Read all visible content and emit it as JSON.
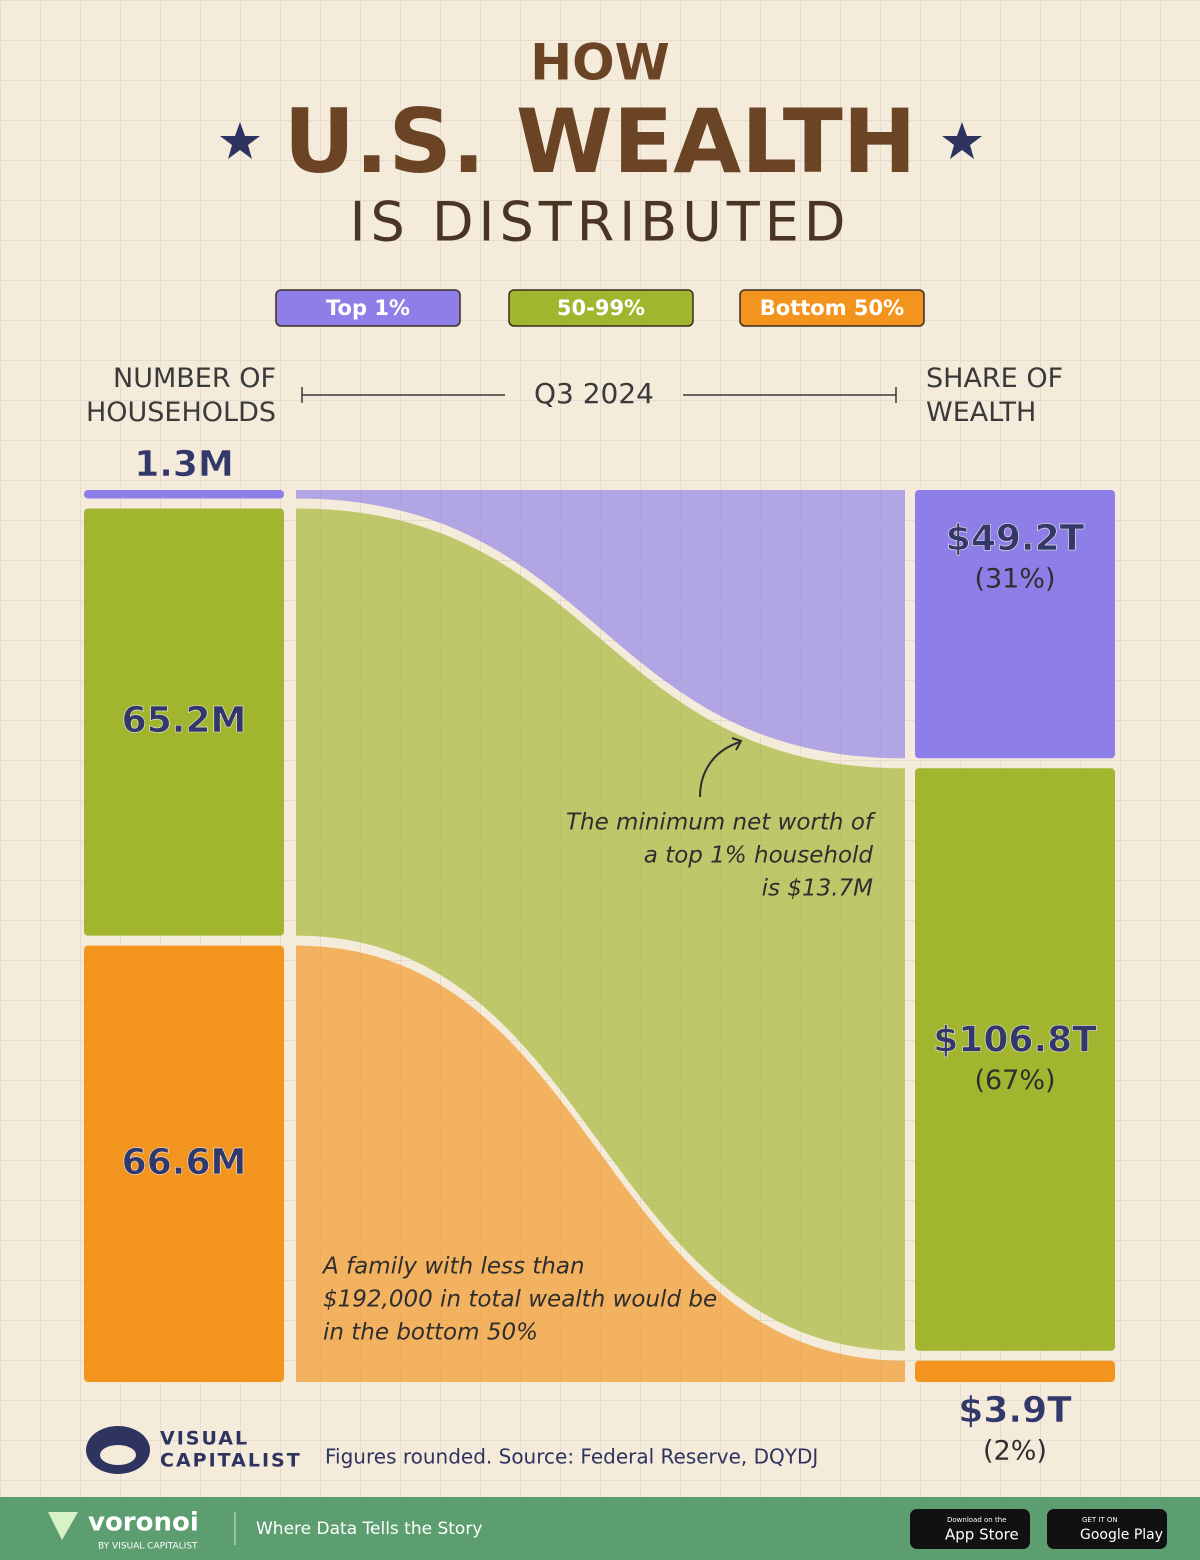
{
  "chart_data": {
    "type": "sankey",
    "title_top": "HOW",
    "title_main": "U.S. WEALTH",
    "title_bottom": "IS DISTRIBUTED",
    "left_label": "NUMBER OF HOUSEHOLDS",
    "period": "Q3 2024",
    "right_label": "SHARE OF WEALTH",
    "categories": [
      "Top 1%",
      "50-99%",
      "Bottom 50%"
    ],
    "colors": [
      "#8e7fe8",
      "#a1b52f",
      "#f3941f"
    ],
    "households": {
      "values": [
        1.3,
        65.2,
        66.6
      ],
      "value_labels": [
        "1.3M",
        "65.2M",
        "66.6M"
      ]
    },
    "wealth": {
      "values": [
        49.2,
        106.8,
        3.9
      ],
      "value_labels": [
        "$49.2T",
        "$106.8T",
        "$3.9T"
      ]
    },
    "share": {
      "values": [
        31,
        67,
        2
      ],
      "value_labels": [
        "(31%)",
        "(67%)",
        "(2%)"
      ]
    },
    "annotations": [
      {
        "lines": [
          "The minimum net worth of",
          "a top 1% household",
          "is $13.7M"
        ]
      },
      {
        "lines": [
          "A family with less than",
          "$192,000 in total wealth would be",
          "in the bottom 50%"
        ]
      }
    ]
  },
  "footer": {
    "brand_top": "VISUAL",
    "brand_bottom": "CAPITALIST",
    "note": "Figures rounded. Source: Federal Reserve, DQYDJ",
    "voronoi": "voronoi",
    "voronoi_by": "BY VISUAL CAPITALIST",
    "tagline": "Where Data Tells the Story",
    "app_store_small": "Download on the",
    "app_store": "App Store",
    "google_small": "GET IT ON",
    "google": "Google Play"
  }
}
